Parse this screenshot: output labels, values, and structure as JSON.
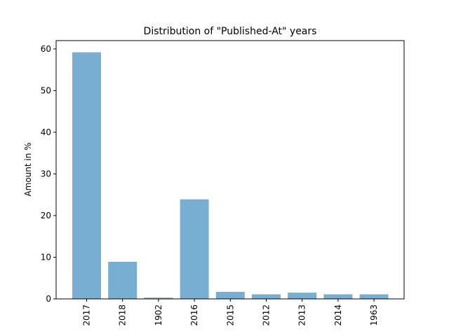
{
  "chart_data": {
    "type": "bar",
    "title": "Distribution of \"Published-At\" years",
    "xlabel": "",
    "ylabel": "Amount in %",
    "categories": [
      "2017",
      "2018",
      "1902",
      "2016",
      "2015",
      "2012",
      "2013",
      "2014",
      "1963"
    ],
    "values": [
      59.2,
      8.9,
      0.3,
      23.9,
      1.7,
      1.1,
      1.5,
      1.1,
      1.1
    ],
    "ylim": [
      0,
      62
    ],
    "yticks": [
      0,
      10,
      20,
      30,
      40,
      50,
      60
    ],
    "bar_color": "#77aed1",
    "grid": false,
    "legend": "none"
  }
}
